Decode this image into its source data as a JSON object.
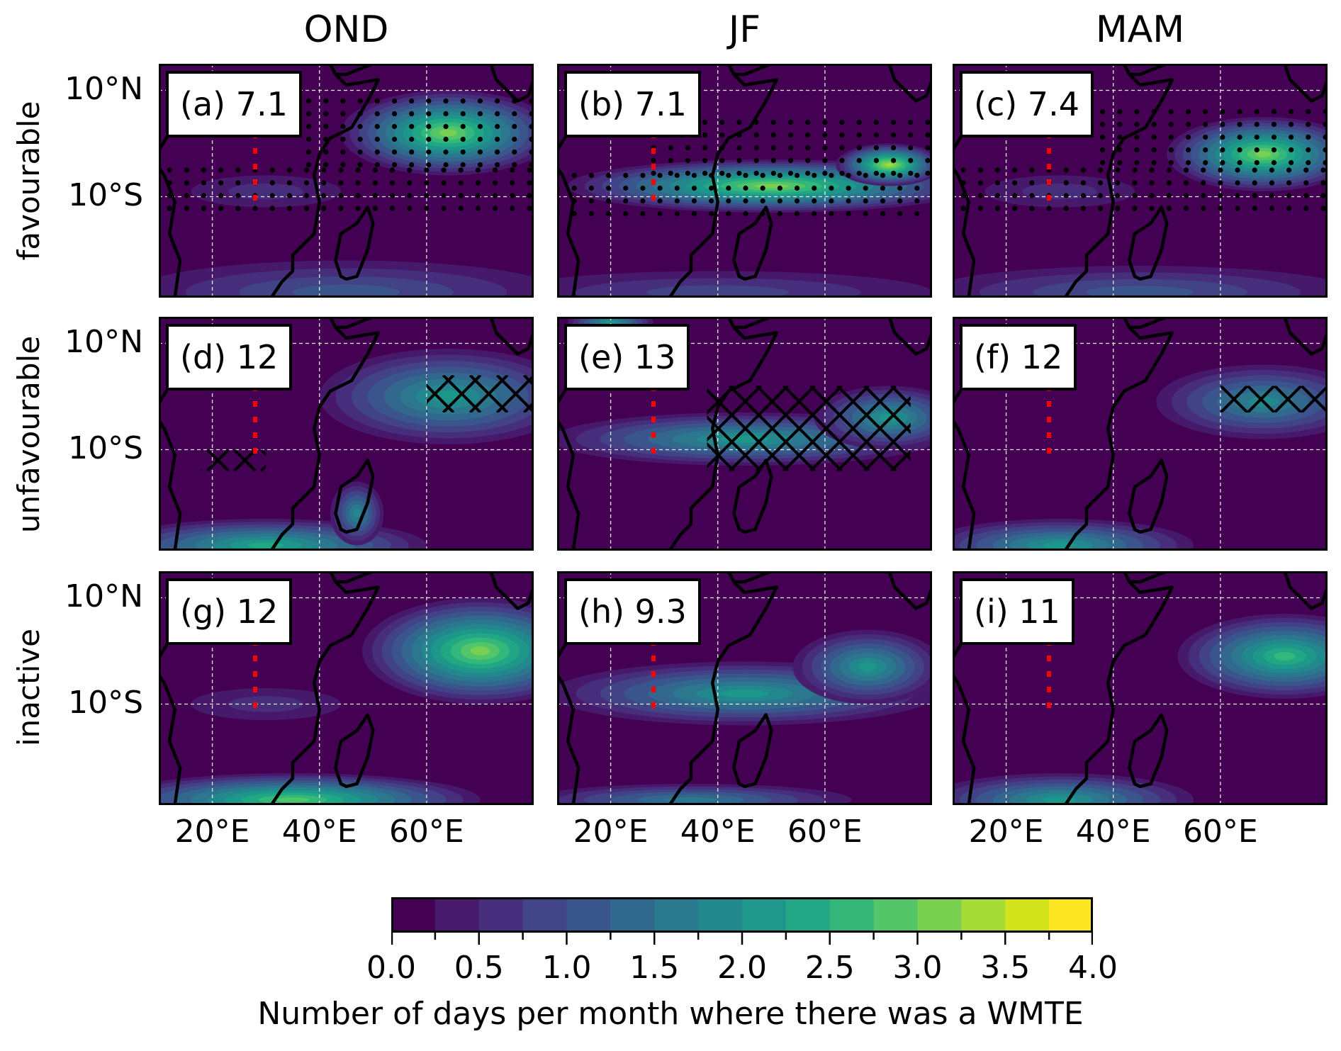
{
  "chart_data": {
    "type": "heatmap",
    "title": "",
    "columns": [
      "OND",
      "JF",
      "MAM"
    ],
    "rows": [
      "favourable",
      "unfavourable",
      "inactive"
    ],
    "lon_range_degE": [
      10,
      80
    ],
    "lat_range_deg": [
      -29,
      15
    ],
    "xticks": [
      20,
      40,
      60
    ],
    "xtick_labels": [
      "20°E",
      "40°E",
      "60°E"
    ],
    "yticks": [
      10,
      -10
    ],
    "ytick_labels": [
      "10°N",
      "10°S"
    ],
    "grid": true,
    "reference_line": {
      "lon": 28,
      "lat_range": [
        -12,
        5
      ],
      "color": "#ff0000",
      "style": "dotted"
    },
    "panels": [
      {
        "id": "a",
        "label": "(a) 7.1",
        "column": "OND",
        "row": "favourable",
        "value": 7.1,
        "significance": "stippling",
        "blobs": [
          {
            "lon": 64,
            "lat": 2,
            "rlon": 20,
            "rlat": 8,
            "v": 3.0
          },
          {
            "lon": 30,
            "lat": -9,
            "rlon": 14,
            "rlat": 3,
            "v": 0.5
          },
          {
            "lon": 45,
            "lat": -28,
            "rlon": 40,
            "rlat": 6,
            "v": 1.2
          }
        ],
        "stipple": [
          {
            "lon0": 12,
            "lon1": 80,
            "lat0": -14,
            "lat1": -5
          },
          {
            "lon0": 38,
            "lon1": 80,
            "lat0": -5,
            "lat1": 8
          }
        ]
      },
      {
        "id": "b",
        "label": "(b) 7.1",
        "column": "JF",
        "row": "favourable",
        "value": 7.1,
        "significance": "stippling",
        "blobs": [
          {
            "lon": 50,
            "lat": -8,
            "rlon": 38,
            "rlat": 5,
            "v": 3.0
          },
          {
            "lon": 72,
            "lat": -4,
            "rlon": 10,
            "rlat": 4,
            "v": 3.4
          },
          {
            "lon": 40,
            "lat": -28,
            "rlon": 40,
            "rlat": 4,
            "v": 0.8
          }
        ],
        "stipple": [
          {
            "lon0": 10,
            "lon1": 80,
            "lat0": -14,
            "lat1": -6
          },
          {
            "lon0": 28,
            "lon1": 80,
            "lat0": -6,
            "lat1": 4
          }
        ]
      },
      {
        "id": "c",
        "label": "(c) 7.4",
        "column": "MAM",
        "row": "favourable",
        "value": 7.4,
        "significance": "stippling",
        "blobs": [
          {
            "lon": 68,
            "lat": -2,
            "rlon": 18,
            "rlat": 7,
            "v": 3.2
          },
          {
            "lon": 30,
            "lat": -9,
            "rlon": 14,
            "rlat": 3,
            "v": 0.6
          },
          {
            "lon": 45,
            "lat": -28,
            "rlon": 40,
            "rlat": 5,
            "v": 1.0
          }
        ],
        "stipple": [
          {
            "lon0": 12,
            "lon1": 80,
            "lat0": -14,
            "lat1": -5
          },
          {
            "lon0": 38,
            "lon1": 80,
            "lat0": -5,
            "lat1": 6
          }
        ]
      },
      {
        "id": "d",
        "label": "(d) 12",
        "column": "OND",
        "row": "unfavourable",
        "value": 12,
        "significance": "hatching",
        "blobs": [
          {
            "lon": 64,
            "lat": 0,
            "rlon": 24,
            "rlat": 9,
            "v": 2.2
          },
          {
            "lon": 30,
            "lat": -28,
            "rlon": 30,
            "rlat": 5,
            "v": 2.4
          },
          {
            "lon": 47,
            "lat": -22,
            "rlon": 5,
            "rlat": 6,
            "v": 1.8
          }
        ],
        "hatch": [
          {
            "lon0": 60,
            "lon1": 80,
            "lat0": -3,
            "lat1": 4
          },
          {
            "lon0": 18,
            "lon1": 30,
            "lat0": -14,
            "lat1": -10
          }
        ]
      },
      {
        "id": "e",
        "label": "(e) 13",
        "column": "JF",
        "row": "unfavourable",
        "value": 13,
        "significance": "hatching",
        "blobs": [
          {
            "lon": 45,
            "lat": -8,
            "rlon": 36,
            "rlat": 5,
            "v": 2.0
          },
          {
            "lon": 72,
            "lat": -4,
            "rlon": 14,
            "rlat": 6,
            "v": 2.2
          },
          {
            "lon": 20,
            "lat": 14,
            "rlon": 8,
            "rlat": 2,
            "v": 2.0
          }
        ],
        "hatch": [
          {
            "lon0": 38,
            "lon1": 76,
            "lat0": -14,
            "lat1": 2
          }
        ]
      },
      {
        "id": "f",
        "label": "(f) 12",
        "column": "MAM",
        "row": "unfavourable",
        "value": 12,
        "significance": "hatching",
        "blobs": [
          {
            "lon": 68,
            "lat": -1,
            "rlon": 20,
            "rlat": 7,
            "v": 1.9
          },
          {
            "lon": 30,
            "lat": -28,
            "rlon": 25,
            "rlat": 5,
            "v": 2.2
          }
        ],
        "hatch": [
          {
            "lon0": 60,
            "lon1": 80,
            "lat0": -3,
            "lat1": 2
          }
        ]
      },
      {
        "id": "g",
        "label": "(g) 12",
        "column": "OND",
        "row": "inactive",
        "value": 12,
        "significance": "none",
        "blobs": [
          {
            "lon": 70,
            "lat": 0,
            "rlon": 22,
            "rlat": 10,
            "v": 3.2
          },
          {
            "lon": 35,
            "lat": -28,
            "rlon": 35,
            "rlat": 5,
            "v": 2.8
          },
          {
            "lon": 30,
            "lat": -10,
            "rlon": 14,
            "rlat": 3,
            "v": 0.5
          }
        ],
        "stipple": []
      },
      {
        "id": "h",
        "label": "(h) 9.3",
        "column": "JF",
        "row": "inactive",
        "value": 9.3,
        "significance": "none",
        "blobs": [
          {
            "lon": 45,
            "lat": -8,
            "rlon": 36,
            "rlat": 6,
            "v": 2.0
          },
          {
            "lon": 68,
            "lat": -3,
            "rlon": 14,
            "rlat": 7,
            "v": 2.2
          },
          {
            "lon": 35,
            "lat": -28,
            "rlon": 30,
            "rlat": 3,
            "v": 1.5
          }
        ],
        "stipple": []
      },
      {
        "id": "i",
        "label": "(i) 11",
        "column": "MAM",
        "row": "inactive",
        "value": 11,
        "significance": "none",
        "blobs": [
          {
            "lon": 72,
            "lat": -1,
            "rlon": 20,
            "rlat": 8,
            "v": 2.6
          },
          {
            "lon": 30,
            "lat": -28,
            "rlon": 25,
            "rlat": 5,
            "v": 2.2
          }
        ],
        "stipple": []
      }
    ],
    "colorbar": {
      "label": "Number of days per month where there was a WMTE",
      "range": [
        0.0,
        4.0
      ],
      "step": 0.25,
      "tick_labels": [
        "0.0",
        "0.5",
        "1.0",
        "1.5",
        "2.0",
        "2.5",
        "3.0",
        "3.5",
        "4.0"
      ],
      "colors": [
        "#440154",
        "#481a6c",
        "#472f7d",
        "#414487",
        "#39568c",
        "#31688e",
        "#2a788e",
        "#23888e",
        "#1f988b",
        "#22a884",
        "#35b779",
        "#54c568",
        "#7ad151",
        "#a5db36",
        "#d2e21b",
        "#fde725"
      ]
    }
  }
}
